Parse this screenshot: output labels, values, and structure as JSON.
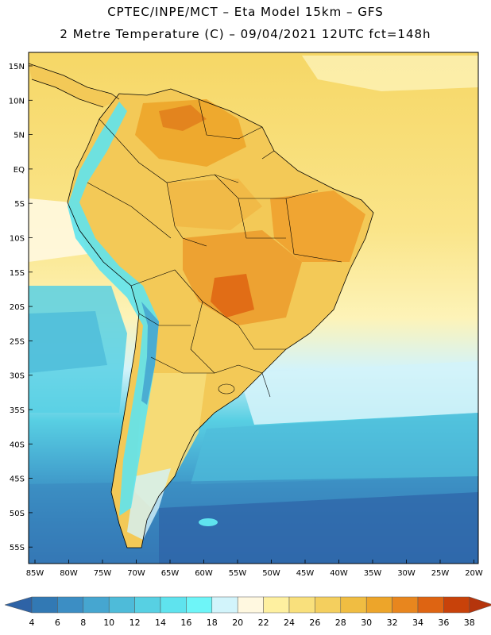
{
  "header": {
    "line1": "CPTEC/INPE/MCT –  Eta Model 15km – GFS",
    "line2": "2 Metre Temperature (C) – 09/04/2021 12UTC fct=148h"
  },
  "map": {
    "lat_labels": [
      "15N",
      "10N",
      "5N",
      "EQ",
      "5S",
      "10S",
      "15S",
      "20S",
      "25S",
      "30S",
      "35S",
      "40S",
      "45S",
      "50S",
      "55S"
    ],
    "lon_labels": [
      "85W",
      "80W",
      "75W",
      "70W",
      "65W",
      "60W",
      "55W",
      "50W",
      "45W",
      "40W",
      "35W",
      "30W",
      "25W",
      "20W"
    ]
  },
  "colorbar": {
    "ticks": [
      "4",
      "6",
      "8",
      "10",
      "12",
      "14",
      "16",
      "18",
      "20",
      "22",
      "24",
      "26",
      "28",
      "30",
      "32",
      "34",
      "36",
      "38"
    ],
    "colors": [
      "#2e63a6",
      "#3279b4",
      "#3c8ec4",
      "#46a6d0",
      "#4ebbd9",
      "#57d0e3",
      "#5fe3ee",
      "#6ef5f8",
      "#d2f4fb",
      "#fff8e0",
      "#fef0a0",
      "#f9e07c",
      "#f4cf5e",
      "#f0bd42",
      "#eda52a",
      "#e8861e",
      "#de6412",
      "#c8420a",
      "#b5350c"
    ]
  }
}
